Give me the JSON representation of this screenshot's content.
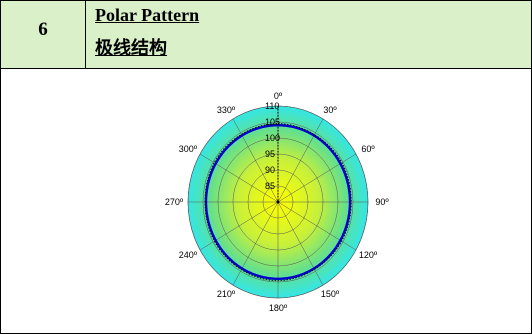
{
  "section": {
    "number": "6",
    "title_en": "Polar Pattern",
    "title_zh": "极线结构"
  },
  "chart_data": {
    "type": "polar",
    "angle_labels": [
      "0º",
      "30º",
      "60º",
      "90º",
      "120º",
      "150º",
      "180º",
      "210º",
      "240º",
      "270º",
      "300º",
      "330º"
    ],
    "angles_deg": [
      0,
      30,
      60,
      90,
      120,
      150,
      180,
      210,
      240,
      270,
      300,
      330
    ],
    "radial_labels": [
      "85",
      "90",
      "95",
      "100",
      "105",
      "110"
    ],
    "radial_values": [
      85,
      90,
      95,
      100,
      105,
      110
    ],
    "rlim": [
      80,
      110
    ],
    "series": [
      {
        "values_deg": [
          0,
          30,
          60,
          90,
          120,
          150,
          180,
          210,
          240,
          270,
          300,
          330,
          360
        ],
        "values": [
          104,
          104,
          104,
          104,
          104,
          104,
          104,
          104,
          104,
          104,
          104,
          104,
          104
        ],
        "color": "#0000cc",
        "style": "solid"
      },
      {
        "values_deg": [
          0,
          30,
          60,
          90,
          120,
          150,
          180,
          210,
          240,
          270,
          300,
          330,
          360
        ],
        "values": [
          104.5,
          104.3,
          104.6,
          104.4,
          104.5,
          104.3,
          104.6,
          104.4,
          104.5,
          104.3,
          104.6,
          104.4,
          104.5
        ],
        "color": "#000000",
        "style": "dotted"
      }
    ],
    "colors": {
      "outer": "#33e6e6",
      "inner": "#ffff00",
      "grid": "#555555"
    }
  }
}
